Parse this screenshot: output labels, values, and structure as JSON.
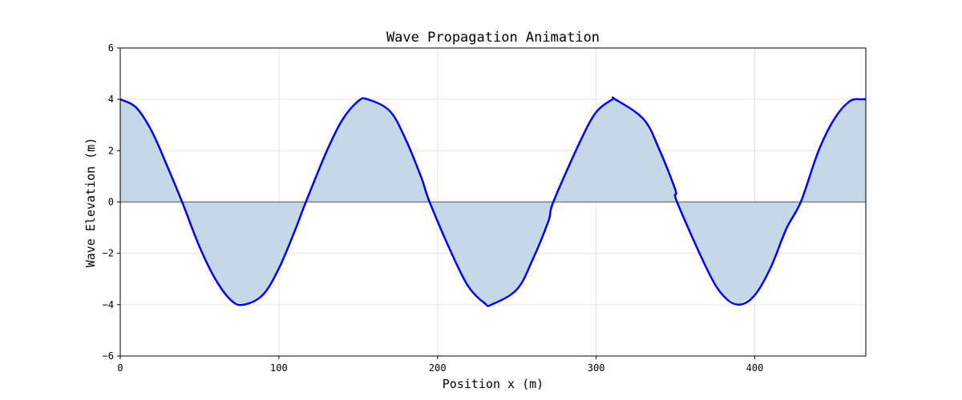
{
  "chart_data": {
    "type": "line",
    "title": "Wave Propagation Animation",
    "xlabel": "Position x (m)",
    "ylabel": "Wave Elevation (m)",
    "xlim": [
      0,
      470
    ],
    "ylim": [
      -6,
      6
    ],
    "xticks": [
      0,
      100,
      200,
      300,
      400
    ],
    "yticks": [
      -6,
      -4,
      -2,
      0,
      2,
      4,
      6
    ],
    "xtick_labels": [
      "0",
      "100",
      "200",
      "300",
      "400"
    ],
    "ytick_labels": [
      "−6",
      "−4",
      "−2",
      "0",
      "2",
      "4",
      "6"
    ],
    "grid": true,
    "series": [
      {
        "name": "wave elevation",
        "color": "#0000ff",
        "fill_to_zero": true,
        "fill_color": "#c6d8e8",
        "x": [
          0,
          10,
          20,
          30,
          39,
          50,
          60,
          70,
          78,
          90,
          100,
          110,
          117,
          130,
          140,
          150,
          156,
          170,
          180,
          190,
          195,
          210,
          220,
          230,
          234,
          250,
          260,
          270,
          273,
          290,
          300,
          310,
          312,
          330,
          340,
          350,
          351,
          370,
          380,
          390,
          400,
          410,
          420,
          429,
          440,
          450,
          460,
          468,
          470
        ],
        "y": [
          4.0,
          3.68,
          2.74,
          1.34,
          0.0,
          -1.75,
          -3.01,
          -3.84,
          -4.0,
          -3.61,
          -2.59,
          -1.13,
          0.0,
          1.96,
          3.2,
          3.93,
          4.0,
          3.54,
          2.43,
          0.92,
          0.0,
          -2.15,
          -3.34,
          -3.96,
          -4.0,
          -3.41,
          -2.24,
          -0.73,
          0.0,
          2.37,
          3.5,
          3.99,
          4.0,
          3.22,
          2.02,
          0.46,
          0.0,
          -2.63,
          -3.64,
          -4.0,
          -3.63,
          -2.56,
          -1.03,
          0.0,
          1.96,
          3.22,
          3.93,
          4.0,
          4.0
        ]
      },
      {
        "name": "zero line",
        "color": "#808080",
        "x": [
          0,
          470
        ],
        "y": [
          0,
          0
        ]
      }
    ]
  }
}
